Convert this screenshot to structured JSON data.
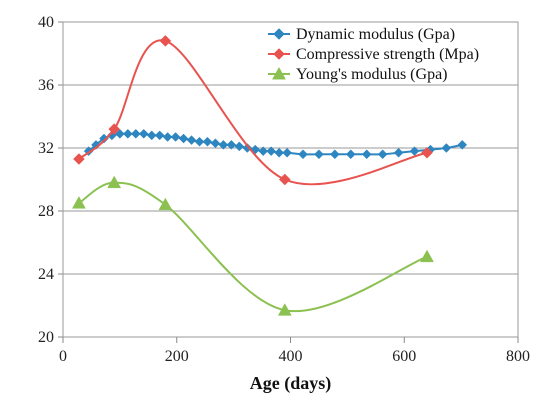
{
  "chart_data": {
    "type": "line",
    "title": "",
    "xlabel": "Age (days)",
    "ylabel": "",
    "xlim": [
      0,
      800
    ],
    "ylim": [
      20,
      40
    ],
    "xticks": [
      0,
      200,
      400,
      600,
      800
    ],
    "yticks": [
      20,
      24,
      28,
      32,
      36,
      40
    ],
    "grid": "horizontal",
    "legend_position": "top-right",
    "series": [
      {
        "name": "Dynamic modulus (Gpa)",
        "color": "#2e86c1",
        "marker": "diamond",
        "x": [
          45,
          58,
          72,
          86,
          100,
          114,
          128,
          142,
          156,
          170,
          184,
          198,
          212,
          226,
          240,
          254,
          268,
          282,
          296,
          310,
          324,
          338,
          352,
          366,
          380,
          394,
          422,
          450,
          478,
          506,
          534,
          562,
          590,
          618,
          646,
          674,
          702
        ],
        "values": [
          31.8,
          32.2,
          32.6,
          32.8,
          32.9,
          32.9,
          32.9,
          32.9,
          32.8,
          32.8,
          32.7,
          32.7,
          32.6,
          32.5,
          32.4,
          32.4,
          32.3,
          32.2,
          32.2,
          32.1,
          32.0,
          31.9,
          31.8,
          31.8,
          31.7,
          31.7,
          31.6,
          31.6,
          31.6,
          31.6,
          31.6,
          31.6,
          31.7,
          31.8,
          31.9,
          32.0,
          32.2
        ]
      },
      {
        "name": "Compressive strength (Mpa)",
        "color": "#e8534f",
        "marker": "diamond",
        "x": [
          28,
          90,
          180,
          390,
          640
        ],
        "values": [
          31.3,
          33.2,
          38.8,
          30.0,
          31.7
        ]
      },
      {
        "name": "Young's modulus (Gpa)",
        "color": "#8cc152",
        "marker": "triangle",
        "x": [
          28,
          90,
          180,
          390,
          640
        ],
        "values": [
          28.5,
          29.8,
          28.4,
          21.7,
          25.1
        ]
      }
    ]
  }
}
